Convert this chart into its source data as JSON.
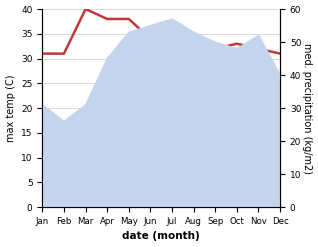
{
  "months": [
    "Jan",
    "Feb",
    "Mar",
    "Apr",
    "May",
    "Jun",
    "Jul",
    "Aug",
    "Sep",
    "Oct",
    "Nov",
    "Dec"
  ],
  "temperature": [
    31,
    31,
    40,
    38,
    38,
    34,
    33,
    33,
    32,
    33,
    32,
    31
  ],
  "precipitation": [
    31,
    26,
    31,
    45,
    53,
    55,
    57,
    53,
    50,
    48,
    52,
    40
  ],
  "temp_color": "#c0393b",
  "precip_fill_color": "#c5d4ed",
  "temp_ylim": [
    0,
    40
  ],
  "precip_ylim": [
    0,
    60
  ],
  "temp_ylabel": "max temp (C)",
  "precip_ylabel": "med. precipitation (kg/m2)",
  "xlabel": "date (month)",
  "bg_color": "#ffffff",
  "grid_color": "#cccccc"
}
